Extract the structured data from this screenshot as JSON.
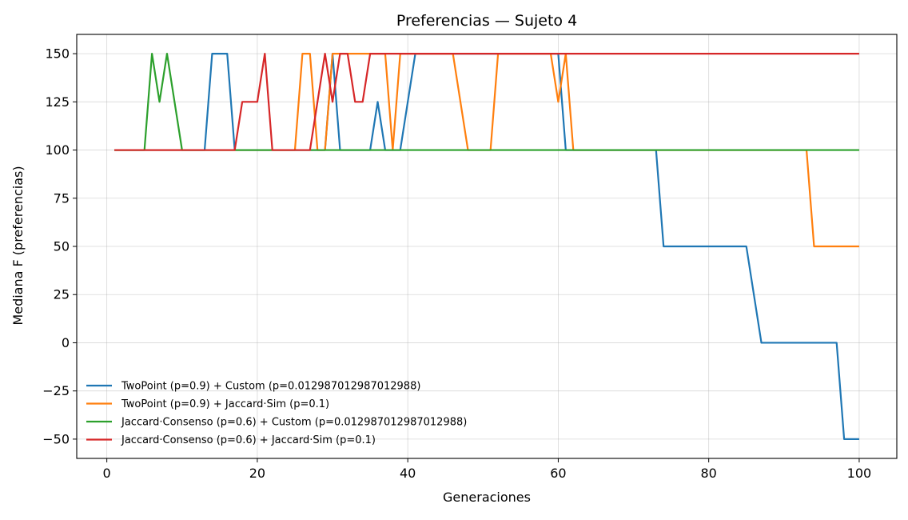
{
  "chart_data": {
    "type": "line",
    "title": "Preferencias — Sujeto 4",
    "xlabel": "Generaciones",
    "ylabel": "Mediana F (preferencias)",
    "xlim": [
      -4,
      105
    ],
    "ylim": [
      -60,
      160
    ],
    "xticks": [
      0,
      20,
      40,
      60,
      80,
      100
    ],
    "xtick_labels": [
      "0",
      "20",
      "40",
      "60",
      "80",
      "100"
    ],
    "yticks": [
      -50,
      -25,
      0,
      25,
      50,
      75,
      100,
      125,
      150
    ],
    "ytick_labels": [
      "−50",
      "−25",
      "0",
      "25",
      "50",
      "75",
      "100",
      "125",
      "150"
    ],
    "grid": true,
    "legend_position": "lower-left",
    "series": [
      {
        "name": "TwoPoint (p=0.9) + Custom (p=0.012987012987012988)",
        "color": "#1f77b4",
        "points": [
          [
            1,
            100
          ],
          [
            13,
            100
          ],
          [
            14,
            150
          ],
          [
            16,
            150
          ],
          [
            17,
            100
          ],
          [
            29,
            100
          ],
          [
            30,
            150
          ],
          [
            31,
            100
          ],
          [
            35,
            100
          ],
          [
            36,
            125
          ],
          [
            37,
            100
          ],
          [
            39,
            100
          ],
          [
            41,
            150
          ],
          [
            60,
            150
          ],
          [
            61,
            100
          ],
          [
            73,
            100
          ],
          [
            74,
            50
          ],
          [
            85,
            50
          ],
          [
            87,
            0
          ],
          [
            97,
            0
          ],
          [
            98,
            -50
          ],
          [
            100,
            -50
          ]
        ]
      },
      {
        "name": "TwoPoint (p=0.9) + Jaccard·Sim (p=0.1)",
        "color": "#ff7f0e",
        "points": [
          [
            1,
            100
          ],
          [
            25,
            100
          ],
          [
            26,
            150
          ],
          [
            27,
            150
          ],
          [
            28,
            100
          ],
          [
            29,
            100
          ],
          [
            30,
            150
          ],
          [
            37,
            150
          ],
          [
            38,
            100
          ],
          [
            39,
            150
          ],
          [
            46,
            150
          ],
          [
            48,
            100
          ],
          [
            51,
            100
          ],
          [
            52,
            150
          ],
          [
            59,
            150
          ],
          [
            60,
            125
          ],
          [
            61,
            150
          ],
          [
            62,
            100
          ],
          [
            93,
            100
          ],
          [
            94,
            50
          ],
          [
            100,
            50
          ]
        ]
      },
      {
        "name": "Jaccard·Consenso (p=0.6) + Custom (p=0.012987012987012988)",
        "color": "#2ca02c",
        "points": [
          [
            1,
            100
          ],
          [
            5,
            100
          ],
          [
            6,
            150
          ],
          [
            7,
            125
          ],
          [
            8,
            150
          ],
          [
            10,
            100
          ],
          [
            100,
            100
          ]
        ]
      },
      {
        "name": "Jaccard·Consenso (p=0.6) + Jaccard·Sim (p=0.1)",
        "color": "#d62728",
        "points": [
          [
            1,
            100
          ],
          [
            17,
            100
          ],
          [
            18,
            125
          ],
          [
            20,
            125
          ],
          [
            21,
            150
          ],
          [
            22,
            100
          ],
          [
            27,
            100
          ],
          [
            29,
            150
          ],
          [
            30,
            125
          ],
          [
            31,
            150
          ],
          [
            32,
            150
          ],
          [
            33,
            125
          ],
          [
            34,
            125
          ],
          [
            35,
            150
          ],
          [
            100,
            150
          ]
        ]
      }
    ]
  }
}
